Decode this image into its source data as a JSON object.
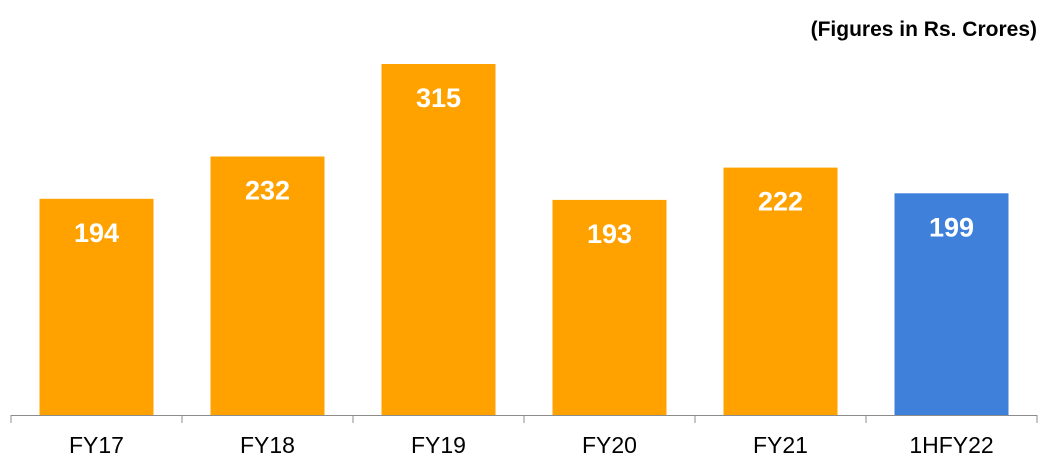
{
  "unit_note": "(Figures in Rs. Crores)",
  "colors": {
    "default_bar": "#FFA200",
    "highlight_bar": "#3F80DB",
    "axis": "#8C8C8C"
  },
  "chart_data": {
    "type": "bar",
    "title": "",
    "xlabel": "",
    "ylabel": "",
    "categories": [
      "FY17",
      "FY18",
      "FY19",
      "FY20",
      "FY21",
      "1HFY22"
    ],
    "values": [
      194,
      232,
      315,
      193,
      222,
      199
    ],
    "ylim": [
      0,
      350
    ],
    "grid": false,
    "highlight_category": "1HFY22",
    "data_labels": true
  }
}
